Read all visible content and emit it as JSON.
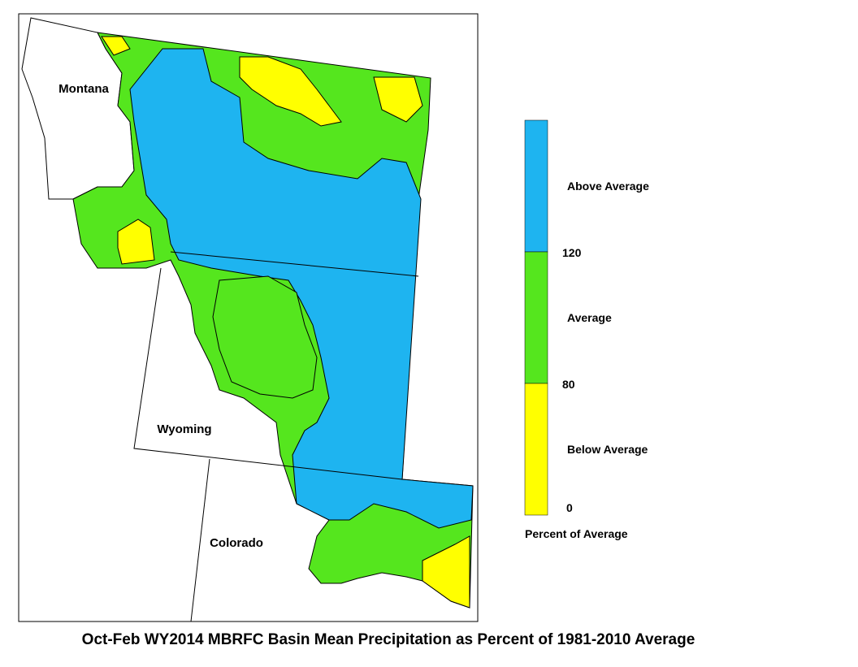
{
  "title": "Oct-Feb WY2014 MBRFC Basin Mean Precipitation as Percent of 1981-2010 Average",
  "map": {
    "labels": [
      "Montana",
      "Wyoming",
      "Colorado"
    ]
  },
  "legend": {
    "title": "Percent of Average",
    "classes": [
      {
        "label": "Above Average",
        "color": "#1eb4f0"
      },
      {
        "label": "Average",
        "color": "#55e61e"
      },
      {
        "label": "Below Average",
        "color": "#ffff00"
      }
    ],
    "breaks": [
      120,
      80,
      0
    ]
  }
}
